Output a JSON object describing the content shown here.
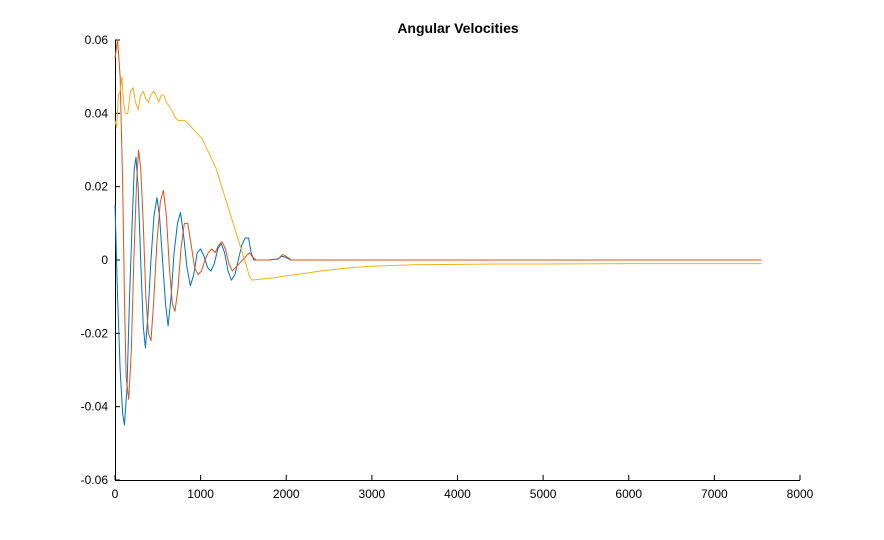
{
  "chart_data": {
    "type": "line",
    "title": "Angular Velocities",
    "xlabel": "",
    "ylabel": "",
    "xlim": [
      0,
      8000
    ],
    "ylim": [
      -0.06,
      0.06
    ],
    "xticks": [
      0,
      1000,
      2000,
      3000,
      4000,
      5000,
      6000,
      7000,
      8000
    ],
    "yticks": [
      -0.06,
      -0.04,
      -0.02,
      0,
      0.02,
      0.04,
      0.06
    ],
    "xtick_labels": [
      "0",
      "1000",
      "2000",
      "3000",
      "4000",
      "5000",
      "6000",
      "7000",
      "8000"
    ],
    "ytick_labels": [
      "-0.06",
      "-0.04",
      "-0.02",
      "0",
      "0.02",
      "0.04",
      "0.06"
    ],
    "grid": false,
    "legend": "none",
    "series": [
      {
        "color": "#0072BD",
        "points": [
          [
            0,
            0.015
          ],
          [
            30,
            -0.01
          ],
          [
            60,
            -0.03
          ],
          [
            90,
            -0.042
          ],
          [
            110,
            -0.045
          ],
          [
            140,
            -0.035
          ],
          [
            170,
            -0.01
          ],
          [
            200,
            0.01
          ],
          [
            225,
            0.025
          ],
          [
            245,
            0.028
          ],
          [
            270,
            0.02
          ],
          [
            300,
            0.0
          ],
          [
            330,
            -0.018
          ],
          [
            355,
            -0.024
          ],
          [
            385,
            -0.015
          ],
          [
            420,
            0.0
          ],
          [
            455,
            0.012
          ],
          [
            490,
            0.017
          ],
          [
            520,
            0.012
          ],
          [
            555,
            0.0
          ],
          [
            590,
            -0.012
          ],
          [
            620,
            -0.018
          ],
          [
            655,
            -0.01
          ],
          [
            690,
            0.002
          ],
          [
            730,
            0.01
          ],
          [
            765,
            0.013
          ],
          [
            800,
            0.007
          ],
          [
            840,
            -0.002
          ],
          [
            880,
            -0.007
          ],
          [
            920,
            -0.004
          ],
          [
            960,
            0.002
          ],
          [
            1000,
            0.003
          ],
          [
            1040,
            0.001
          ],
          [
            1080,
            -0.002
          ],
          [
            1120,
            -0.003
          ],
          [
            1160,
            -0.001
          ],
          [
            1200,
            0.003
          ],
          [
            1240,
            0.0045
          ],
          [
            1280,
            0.002
          ],
          [
            1320,
            -0.003
          ],
          [
            1360,
            -0.0055
          ],
          [
            1400,
            -0.004
          ],
          [
            1440,
            0.0
          ],
          [
            1480,
            0.004
          ],
          [
            1520,
            0.006
          ],
          [
            1560,
            0.006
          ],
          [
            1590,
            0.002
          ],
          [
            1620,
            0.0
          ],
          [
            1700,
            0.0
          ],
          [
            1800,
            0.0
          ],
          [
            1900,
            0.0003
          ],
          [
            1950,
            0.001
          ],
          [
            2000,
            0.0007
          ],
          [
            2050,
            0.0
          ],
          [
            2200,
            0.0
          ],
          [
            3000,
            0.0
          ],
          [
            4000,
            0.0
          ],
          [
            5000,
            0.0
          ],
          [
            6000,
            0.0
          ],
          [
            7000,
            0.0
          ],
          [
            7550,
            0.0
          ]
        ]
      },
      {
        "color": "#D95319",
        "points": [
          [
            0,
            0.055
          ],
          [
            30,
            0.06
          ],
          [
            60,
            0.05
          ],
          [
            90,
            0.02
          ],
          [
            110,
            -0.01
          ],
          [
            130,
            -0.032
          ],
          [
            160,
            -0.038
          ],
          [
            190,
            -0.025
          ],
          [
            220,
            0.0
          ],
          [
            250,
            0.02
          ],
          [
            275,
            0.03
          ],
          [
            300,
            0.025
          ],
          [
            330,
            0.01
          ],
          [
            360,
            -0.01
          ],
          [
            390,
            -0.02
          ],
          [
            420,
            -0.022
          ],
          [
            450,
            -0.012
          ],
          [
            490,
            0.005
          ],
          [
            530,
            0.016
          ],
          [
            565,
            0.019
          ],
          [
            600,
            0.012
          ],
          [
            635,
            -0.002
          ],
          [
            670,
            -0.012
          ],
          [
            700,
            -0.014
          ],
          [
            735,
            -0.008
          ],
          [
            770,
            0.003
          ],
          [
            810,
            0.01
          ],
          [
            850,
            0.01
          ],
          [
            890,
            0.004
          ],
          [
            930,
            -0.002
          ],
          [
            970,
            -0.004
          ],
          [
            1010,
            -0.003
          ],
          [
            1050,
            0.0
          ],
          [
            1090,
            0.002
          ],
          [
            1130,
            0.003
          ],
          [
            1170,
            0.002
          ],
          [
            1210,
            0.004
          ],
          [
            1250,
            0.005
          ],
          [
            1290,
            0.003
          ],
          [
            1330,
            -0.001
          ],
          [
            1370,
            -0.003
          ],
          [
            1410,
            -0.002
          ],
          [
            1450,
            -0.001
          ],
          [
            1490,
            0.0
          ],
          [
            1530,
            0.001
          ],
          [
            1570,
            0.002
          ],
          [
            1600,
            0.001
          ],
          [
            1650,
            0.0
          ],
          [
            1800,
            0.0
          ],
          [
            1900,
            0.0002
          ],
          [
            1960,
            0.0015
          ],
          [
            2010,
            0.0008
          ],
          [
            2060,
            0.0
          ],
          [
            2200,
            0.0
          ],
          [
            3000,
            0.0
          ],
          [
            4000,
            0.0
          ],
          [
            5000,
            0.0
          ],
          [
            6000,
            0.0
          ],
          [
            7000,
            0.0
          ],
          [
            7550,
            0.0
          ]
        ]
      },
      {
        "color": "#EDB120",
        "points": [
          [
            0,
            0.038
          ],
          [
            20,
            0.036
          ],
          [
            40,
            0.045
          ],
          [
            60,
            0.046
          ],
          [
            80,
            0.05
          ],
          [
            100,
            0.043
          ],
          [
            120,
            0.04
          ],
          [
            150,
            0.04
          ],
          [
            180,
            0.046
          ],
          [
            210,
            0.047
          ],
          [
            240,
            0.043
          ],
          [
            270,
            0.041
          ],
          [
            300,
            0.045
          ],
          [
            330,
            0.046
          ],
          [
            360,
            0.044
          ],
          [
            390,
            0.043
          ],
          [
            420,
            0.045
          ],
          [
            450,
            0.046
          ],
          [
            480,
            0.045
          ],
          [
            510,
            0.043
          ],
          [
            540,
            0.045
          ],
          [
            570,
            0.045
          ],
          [
            600,
            0.043
          ],
          [
            630,
            0.042
          ],
          [
            660,
            0.041
          ],
          [
            700,
            0.039
          ],
          [
            740,
            0.038
          ],
          [
            780,
            0.038
          ],
          [
            820,
            0.038
          ],
          [
            860,
            0.037
          ],
          [
            900,
            0.036
          ],
          [
            940,
            0.035
          ],
          [
            980,
            0.034
          ],
          [
            1020,
            0.033
          ],
          [
            1060,
            0.031
          ],
          [
            1100,
            0.029
          ],
          [
            1140,
            0.027
          ],
          [
            1180,
            0.025
          ],
          [
            1220,
            0.022
          ],
          [
            1260,
            0.019
          ],
          [
            1300,
            0.016
          ],
          [
            1340,
            0.013
          ],
          [
            1380,
            0.01
          ],
          [
            1420,
            0.007
          ],
          [
            1460,
            0.004
          ],
          [
            1500,
            0.001
          ],
          [
            1540,
            -0.002
          ],
          [
            1570,
            -0.0045
          ],
          [
            1600,
            -0.0055
          ],
          [
            1700,
            -0.0052
          ],
          [
            1800,
            -0.005
          ],
          [
            1900,
            -0.0047
          ],
          [
            2000,
            -0.0043
          ],
          [
            2200,
            -0.0037
          ],
          [
            2400,
            -0.003
          ],
          [
            2600,
            -0.0025
          ],
          [
            2800,
            -0.002
          ],
          [
            3000,
            -0.0017
          ],
          [
            3500,
            -0.0013
          ],
          [
            4000,
            -0.0012
          ],
          [
            4500,
            -0.0011
          ],
          [
            5000,
            -0.0011
          ],
          [
            6000,
            -0.001
          ],
          [
            7000,
            -0.001
          ],
          [
            7550,
            -0.001
          ]
        ]
      }
    ]
  }
}
